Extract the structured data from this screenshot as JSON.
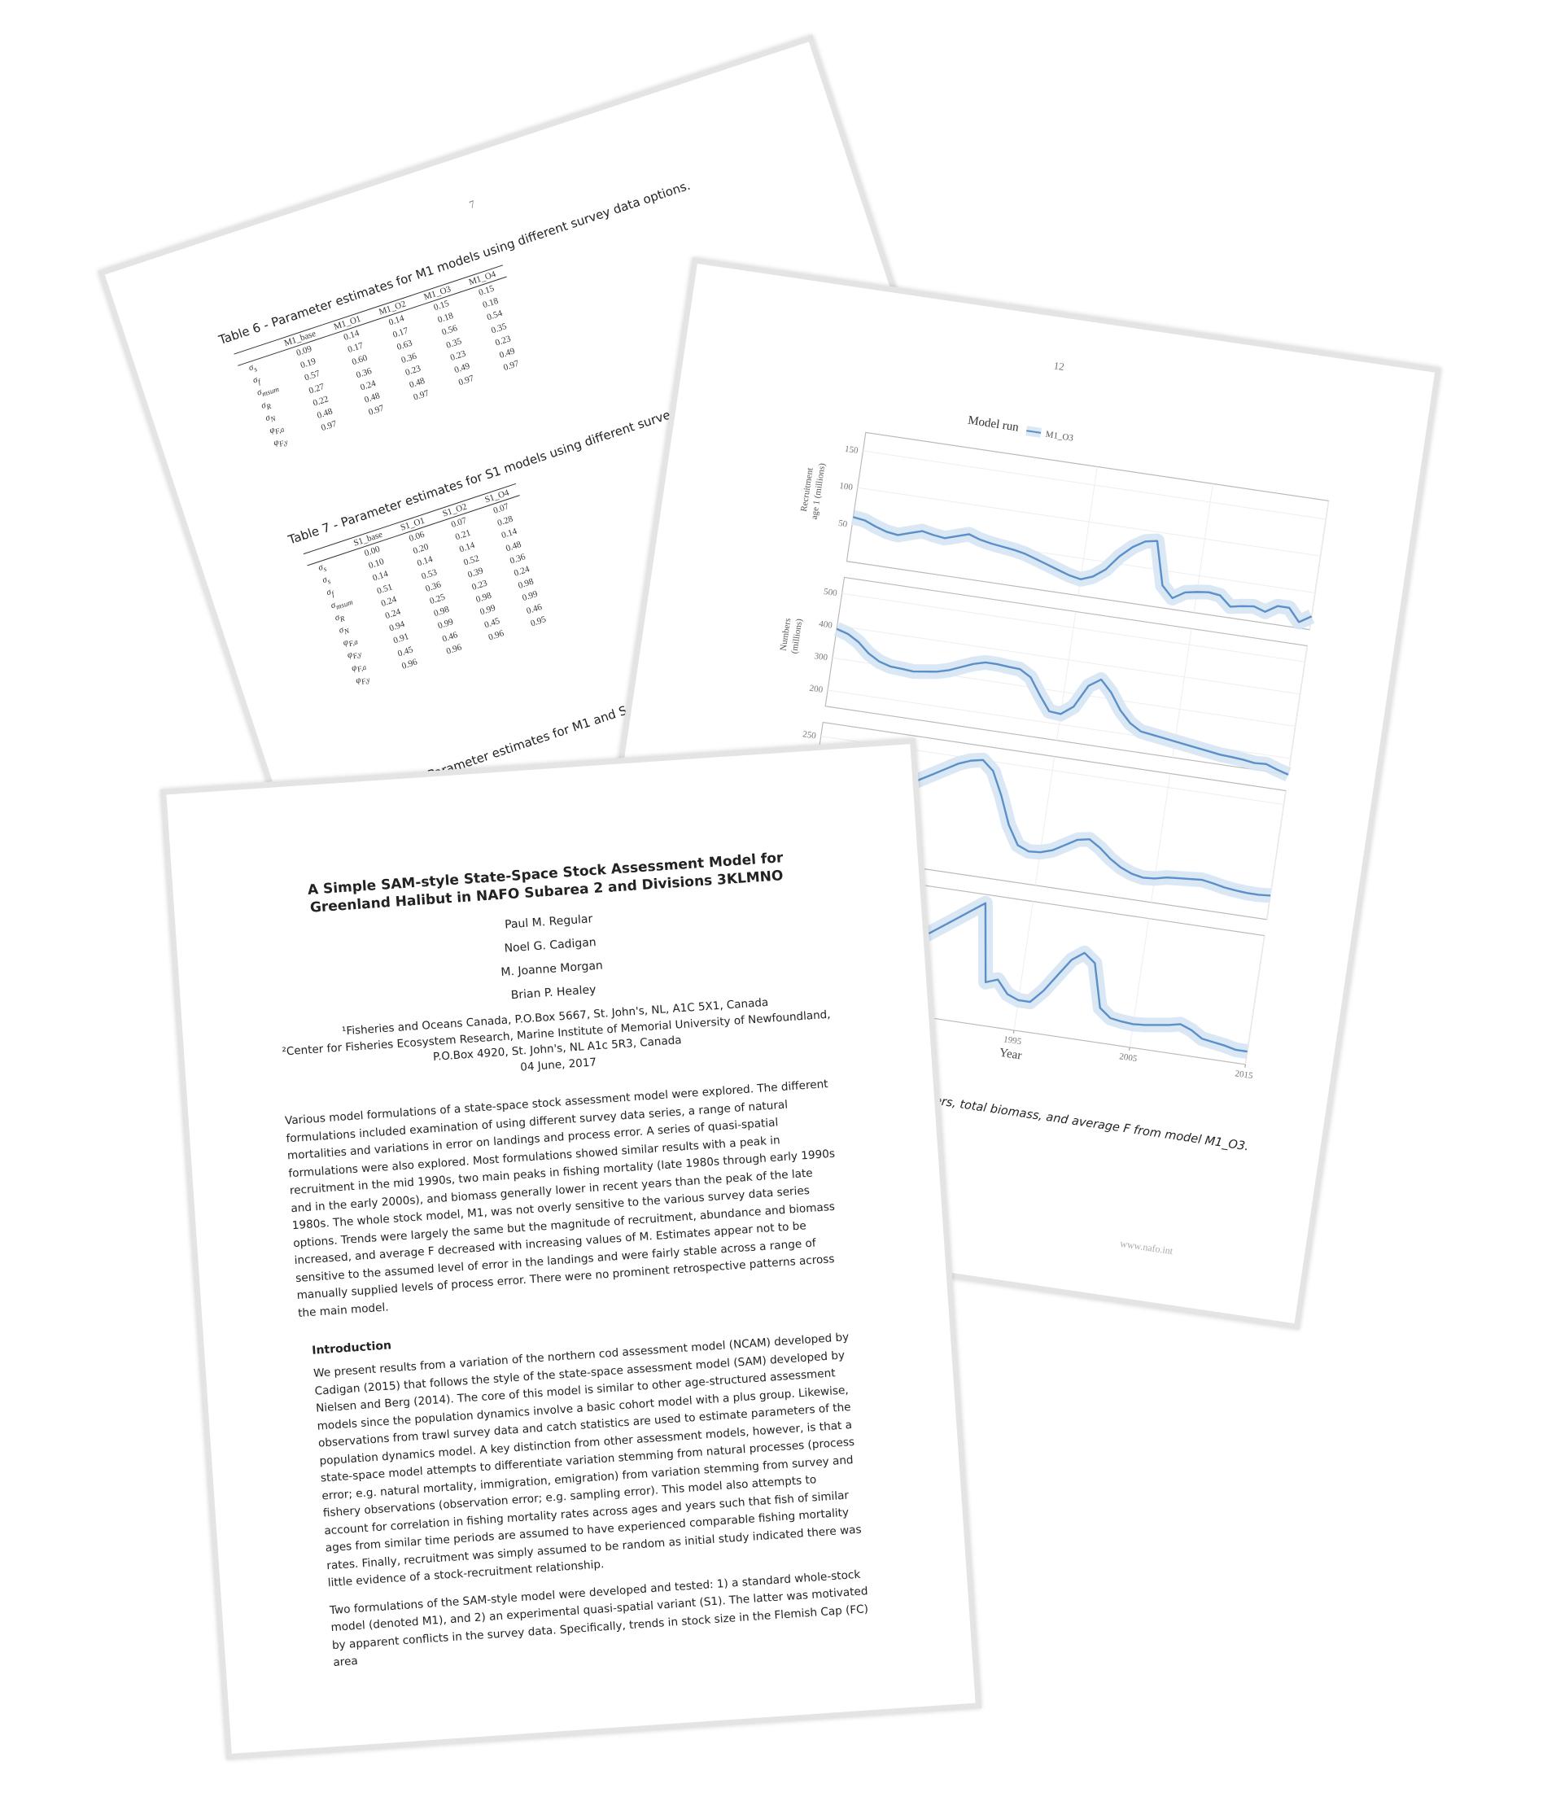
{
  "back_page": {
    "page_number": "7",
    "table6": {
      "caption": "Table 6 - Parameter estimates for M1 models using different survey data options.",
      "columns": [
        "M1_base",
        "M1_O1",
        "M1_O2",
        "M1_O3",
        "M1_O4"
      ],
      "rows": [
        {
          "sym": "σ",
          "sub": "s",
          "cells": [
            "0.09",
            "0.14",
            "0.14",
            "0.15",
            "0.15"
          ]
        },
        {
          "sym": "σ",
          "sub": "f",
          "cells": [
            "0.19",
            "0.17",
            "0.17",
            "0.18",
            "0.18"
          ]
        },
        {
          "sym": "σ",
          "sub": "msum",
          "cells": [
            "0.57",
            "0.60",
            "0.63",
            "0.56",
            "0.54"
          ]
        },
        {
          "sym": "σ",
          "sub": "R",
          "cells": [
            "0.27",
            "0.36",
            "0.36",
            "0.35",
            "0.35"
          ]
        },
        {
          "sym": "σ",
          "sub": "N",
          "cells": [
            "0.22",
            "0.24",
            "0.23",
            "0.23",
            "0.23"
          ]
        },
        {
          "sym": "φ",
          "sub": "F,a",
          "cells": [
            "0.48",
            "0.48",
            "0.48",
            "0.49",
            "0.49"
          ]
        },
        {
          "sym": "φ",
          "sub": "F,y",
          "cells": [
            "0.97",
            "0.97",
            "0.97",
            "0.97",
            "0.97"
          ]
        }
      ]
    },
    "table7": {
      "caption": "Table 7 - Parameter estimates for S1 models using different survey data options.",
      "columns": [
        "S1_base",
        "S1_O1",
        "S1_O2",
        "S1_O4"
      ],
      "rows": [
        {
          "sym": "σ",
          "sub": "s",
          "cells": [
            "0.00",
            "0.06",
            "0.07",
            "0.07"
          ]
        },
        {
          "sym": "σ",
          "sub": "s",
          "cells": [
            "0.10",
            "0.20",
            "0.21",
            "0.28"
          ]
        },
        {
          "sym": "σ",
          "sub": "f",
          "cells": [
            "0.14",
            "0.14",
            "0.14",
            "0.14"
          ]
        },
        {
          "sym": "σ",
          "sub": "msum",
          "cells": [
            "0.51",
            "0.53",
            "0.52",
            "0.48"
          ]
        },
        {
          "sym": "σ",
          "sub": "R",
          "cells": [
            "0.24",
            "0.36",
            "0.39",
            "0.36"
          ]
        },
        {
          "sym": "σ",
          "sub": "N",
          "cells": [
            "0.24",
            "0.25",
            "0.23",
            "0.24"
          ]
        },
        {
          "sym": "φ",
          "sub": "F,a",
          "cells": [
            "0.94",
            "0.98",
            "0.98",
            "0.98"
          ]
        },
        {
          "sym": "φ",
          "sub": "F,y",
          "cells": [
            "0.91",
            "0.99",
            "0.99",
            "0.99"
          ]
        },
        {
          "sym": "φ",
          "sub": "F,a",
          "cells": [
            "0.45",
            "0.46",
            "0.45",
            "0.46"
          ]
        },
        {
          "sym": "φ",
          "sub": "F,y",
          "cells": [
            "0.96",
            "0.96",
            "0.96",
            "0.95"
          ]
        }
      ]
    },
    "table8_caption": "Table 8 - Parameter estimates for M1 and S1 models"
  },
  "chart_page": {
    "page_number": "12",
    "caption": "Figure 5 - Estimated recruitment, numbers, total biomass, and average F from model M1_O3.",
    "footer": "www.nafo.int"
  },
  "chart_data": {
    "type": "line",
    "legend_title": "Model run",
    "series": [
      {
        "name": "M1_O3",
        "color": "#5b8fc7"
      }
    ],
    "x_label": "Year",
    "x": [
      1975,
      1976,
      1977,
      1978,
      1979,
      1980,
      1981,
      1982,
      1983,
      1984,
      1985,
      1986,
      1987,
      1988,
      1989,
      1990,
      1991,
      1992,
      1993,
      1994,
      1995,
      1996,
      1997,
      1998,
      1999,
      2000,
      2001,
      2002,
      2003,
      2004,
      2005,
      2006,
      2007,
      2008,
      2009,
      2010,
      2011,
      2012,
      2013,
      2014,
      2015
    ],
    "xlim": [
      1975,
      2015
    ],
    "xticks": [
      1995,
      2005,
      2015
    ],
    "grid": true,
    "panels": [
      {
        "y_label": [
          "Recruitment",
          "age 1 (millions)"
        ],
        "ylim": [
          0,
          175
        ],
        "yticks": [
          50,
          100,
          150
        ],
        "values": [
          60,
          58,
          52,
          47,
          45,
          50,
          55,
          52,
          50,
          55,
          60,
          55,
          52,
          50,
          48,
          45,
          40,
          35,
          30,
          25,
          22,
          28,
          40,
          60,
          75,
          85,
          88,
          30,
          15,
          25,
          28,
          30,
          28,
          15,
          18,
          20,
          15,
          25,
          25,
          8,
          18
        ]
      },
      {
        "y_label": [
          "Numbers",
          "(millions)"
        ],
        "ylim": [
          150,
          550
        ],
        "yticks": [
          200,
          300,
          400,
          500
        ],
        "values": [
          390,
          380,
          360,
          330,
          310,
          300,
          298,
          295,
          300,
          305,
          315,
          330,
          345,
          355,
          355,
          352,
          350,
          330,
          280,
          235,
          232,
          260,
          330,
          355,
          320,
          270,
          235,
          215,
          210,
          205,
          200,
          195,
          190,
          185,
          180,
          178,
          175,
          170,
          172,
          160,
          150
        ]
      },
      {
        "ylim": [
          0,
          280
        ],
        "yticks": [
          250
        ],
        "values": [
          60,
          70,
          85,
          100,
          115,
          130,
          145,
          160,
          175,
          190,
          205,
          220,
          235,
          245,
          250,
          230,
          180,
          120,
          80,
          70,
          72,
          80,
          95,
          110,
          115,
          100,
          80,
          65,
          55,
          50,
          52,
          58,
          60,
          62,
          64,
          60,
          55,
          52,
          50,
          50,
          52
        ]
      },
      {
        "ylim": [
          0,
          1.5
        ],
        "values": [
          0.2,
          0.25,
          0.3,
          0.35,
          0.4,
          0.45,
          0.5,
          0.55,
          0.6,
          0.7,
          0.8,
          0.9,
          1.0,
          1.1,
          1.2,
          1.3,
          1.4,
          0.5,
          0.55,
          0.4,
          0.35,
          0.35,
          0.5,
          0.7,
          0.9,
          1.0,
          0.9,
          0.4,
          0.3,
          0.28,
          0.27,
          0.28,
          0.3,
          0.32,
          0.35,
          0.3,
          0.22,
          0.2,
          0.18,
          0.15,
          0.15
        ]
      }
    ]
  },
  "front_page": {
    "title": "A Simple SAM-style State-Space Stock Assessment Model for Greenland Halibut in NAFO Subarea 2 and Divisions 3KLMNO",
    "authors": [
      "Paul M. Regular",
      "Noel G. Cadigan",
      "M. Joanne Morgan",
      "Brian P. Healey"
    ],
    "affiliations": [
      "¹Fisheries and Oceans Canada, P.O.Box 5667, St. John's, NL, A1C 5X1, Canada",
      "²Center for Fisheries Ecosystem Research, Marine Institute of Memorial University of Newfoundland, P.O.Box 4920, St. John's, NL A1c 5R3, Canada"
    ],
    "date": "04 June, 2017",
    "abstract": "Various model formulations of a state-space stock assessment model were explored. The different formulations included examination of using different survey data series, a range of natural mortalities and variations in error on landings and process error. A series of quasi-spatial formulations were also explored. Most formulations showed similar results with a peak in recruitment in the mid 1990s, two main peaks in fishing mortality (late 1980s through early 1990s and in the early 2000s), and biomass generally lower in recent years than the peak of the late 1980s. The whole stock model, M1, was not overly sensitive to the various survey data series options. Trends were largely the same but the magnitude of recruitment, abundance and biomass increased, and average F decreased with increasing values of M. Estimates appear not to be sensitive to the assumed level of error in the landings and were fairly stable across a range of manually supplied levels of process error. There were no prominent retrospective patterns across the main model.",
    "introduction": {
      "heading": "Introduction",
      "paragraphs": [
        "We present results from a variation of the northern cod assessment model (NCAM) developed by Cadigan (2015) that follows the style of the state-space assessment model (SAM) developed by Nielsen and Berg (2014). The core of this model is similar to other age-structured assessment models since the population dynamics involve a basic cohort model with a plus group. Likewise, observations from trawl survey data and catch statistics are used to estimate parameters of the population dynamics model. A key distinction from other assessment models, however, is that a state-space model attempts to differentiate variation stemming from natural processes (process error; e.g. natural mortality, immigration, emigration) from variation stemming from survey and fishery observations (observation error; e.g. sampling error). This model also attempts to account for correlation in fishing mortality rates across ages and years such that fish of similar ages from similar time periods are assumed to have experienced comparable fishing mortality rates. Finally, recruitment was simply assumed to be random as initial study indicated there was little evidence of a stock-recruitment relationship.",
        "Two formulations of the SAM-style model were developed and tested: 1) a standard whole-stock model (denoted M1), and 2) an experimental quasi-spatial variant (S1). The latter was motivated by apparent conflicts in the survey data. Specifically, trends in stock size in the Flemish Cap (FC) area"
      ]
    }
  }
}
